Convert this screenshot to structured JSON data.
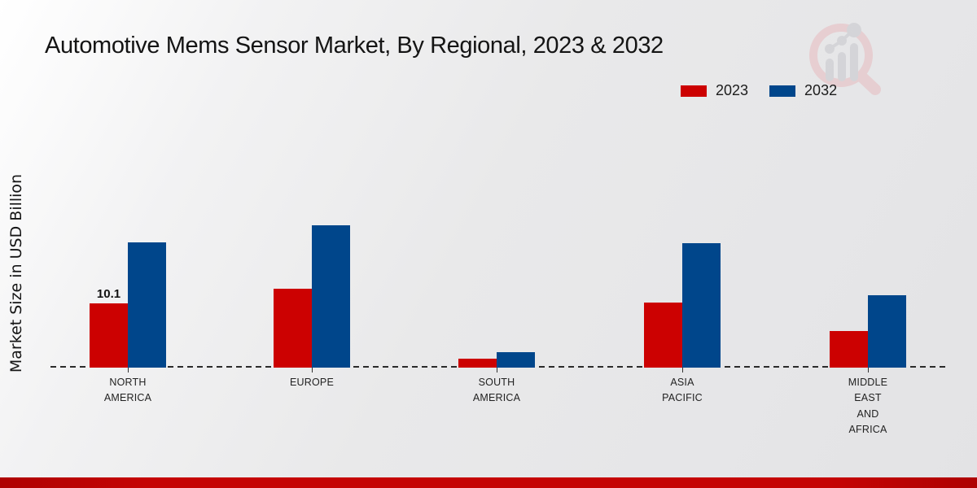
{
  "page": {
    "title": "Automotive Mems Sensor Market, By Regional, 2023 & 2032",
    "y_axis_title": "Market Size in USD Billion",
    "footer_color": "#c50404",
    "watermark_name": "market-research-magnifier-logo"
  },
  "legend": [
    {
      "label": "2023",
      "color": "#cc0101"
    },
    {
      "label": "2032",
      "color": "#00468b"
    }
  ],
  "chart_data": {
    "type": "bar",
    "title": "Automotive Mems Sensor Market, By Regional, 2023 & 2032",
    "xlabel": "",
    "ylabel": "Market Size in USD Billion",
    "categories": [
      "NORTH AMERICA",
      "EUROPE",
      "SOUTH AMERICA",
      "ASIA PACIFIC",
      "MIDDLE EAST AND AFRICA"
    ],
    "category_display": [
      "NORTH\nAMERICA",
      "EUROPE",
      "SOUTH\nAMERICA",
      "ASIA\nPACIFIC",
      "MIDDLE\nEAST\nAND\nAFRICA"
    ],
    "series": [
      {
        "name": "2023",
        "color": "#cc0101",
        "values": [
          10.1,
          12.5,
          1.4,
          10.2,
          5.8
        ]
      },
      {
        "name": "2032",
        "color": "#00468b",
        "values": [
          19.8,
          22.4,
          2.4,
          19.6,
          11.4
        ]
      }
    ],
    "annotations": [
      {
        "category": "NORTH AMERICA",
        "series": "2023",
        "text": "10.1"
      }
    ],
    "ylim": [
      0,
      24
    ],
    "grid": false,
    "legend_position": "top-right",
    "baseline_style": "dashed",
    "y_ticks_visible": false
  }
}
